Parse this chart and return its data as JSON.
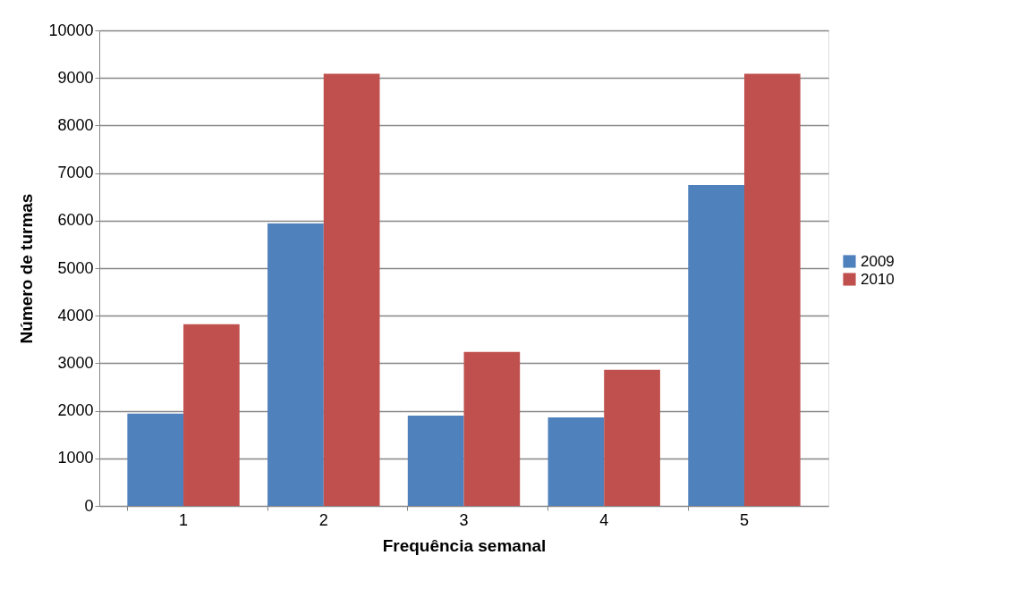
{
  "chart_data": {
    "type": "bar",
    "xlabel": "Frequência semanal",
    "ylabel": "Número de turmas",
    "categories": [
      "1",
      "2",
      "3",
      "4",
      "5"
    ],
    "series": [
      {
        "name": "2009",
        "color": "#4f81bd",
        "values": [
          1940,
          5940,
          1900,
          1860,
          6750
        ]
      },
      {
        "name": "2010",
        "color": "#c0504d",
        "values": [
          3820,
          9090,
          3240,
          2860,
          9090
        ]
      }
    ],
    "ylim": [
      0,
      10000
    ],
    "yticks": [
      0,
      1000,
      2000,
      3000,
      4000,
      5000,
      6000,
      7000,
      8000,
      9000,
      10000
    ],
    "grid": "y",
    "legend": "right"
  }
}
